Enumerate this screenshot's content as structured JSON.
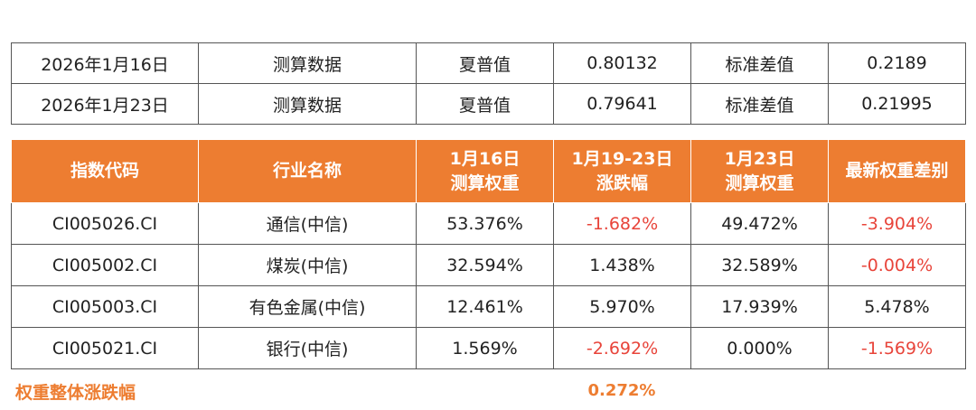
{
  "summary_rows": [
    {
      "date": "2026年1月16日",
      "label": "测算数据",
      "metric1_name": "夏普值",
      "metric1_value": "0.80132",
      "metric2_name": "标准差值",
      "metric2_value": "0.2189"
    },
    {
      "date": "2026年1月23日",
      "label": "测算数据",
      "metric1_name": "夏普值",
      "metric1_value": "0.79641",
      "metric2_name": "标准差值",
      "metric2_value": "0.21995"
    }
  ],
  "table": {
    "headers": [
      {
        "line1": "指数代码",
        "line2": ""
      },
      {
        "line1": "行业名称",
        "line2": ""
      },
      {
        "line1": "1月16日",
        "line2": "测算权重"
      },
      {
        "line1": "1月19-23日",
        "line2": "涨跌幅"
      },
      {
        "line1": "1月23日",
        "line2": "测算权重"
      },
      {
        "line1": "最新权重差别",
        "line2": ""
      }
    ],
    "rows": [
      {
        "code": "CI005026.CI",
        "industry": "通信(中信)",
        "weight_0116": "53.376%",
        "change": "-1.682%",
        "weight_0123": "49.472%",
        "diff": "-3.904%"
      },
      {
        "code": "CI005002.CI",
        "industry": "煤炭(中信)",
        "weight_0116": "32.594%",
        "change": "1.438%",
        "weight_0123": "32.589%",
        "diff": "-0.004%"
      },
      {
        "code": "CI005003.CI",
        "industry": "有色金属(中信)",
        "weight_0116": "12.461%",
        "change": "5.970%",
        "weight_0123": "17.939%",
        "diff": "5.478%"
      },
      {
        "code": "CI005021.CI",
        "industry": "银行(中信)",
        "weight_0116": "1.569%",
        "change": "-2.692%",
        "weight_0123": "0.000%",
        "diff": "-1.569%"
      }
    ]
  },
  "footer": {
    "label": "权重整体涨跌幅",
    "value": "0.272%"
  },
  "colors": {
    "header_bg": "#ed7d31",
    "negative": "#e8443a",
    "footer": "#ed7d31"
  }
}
